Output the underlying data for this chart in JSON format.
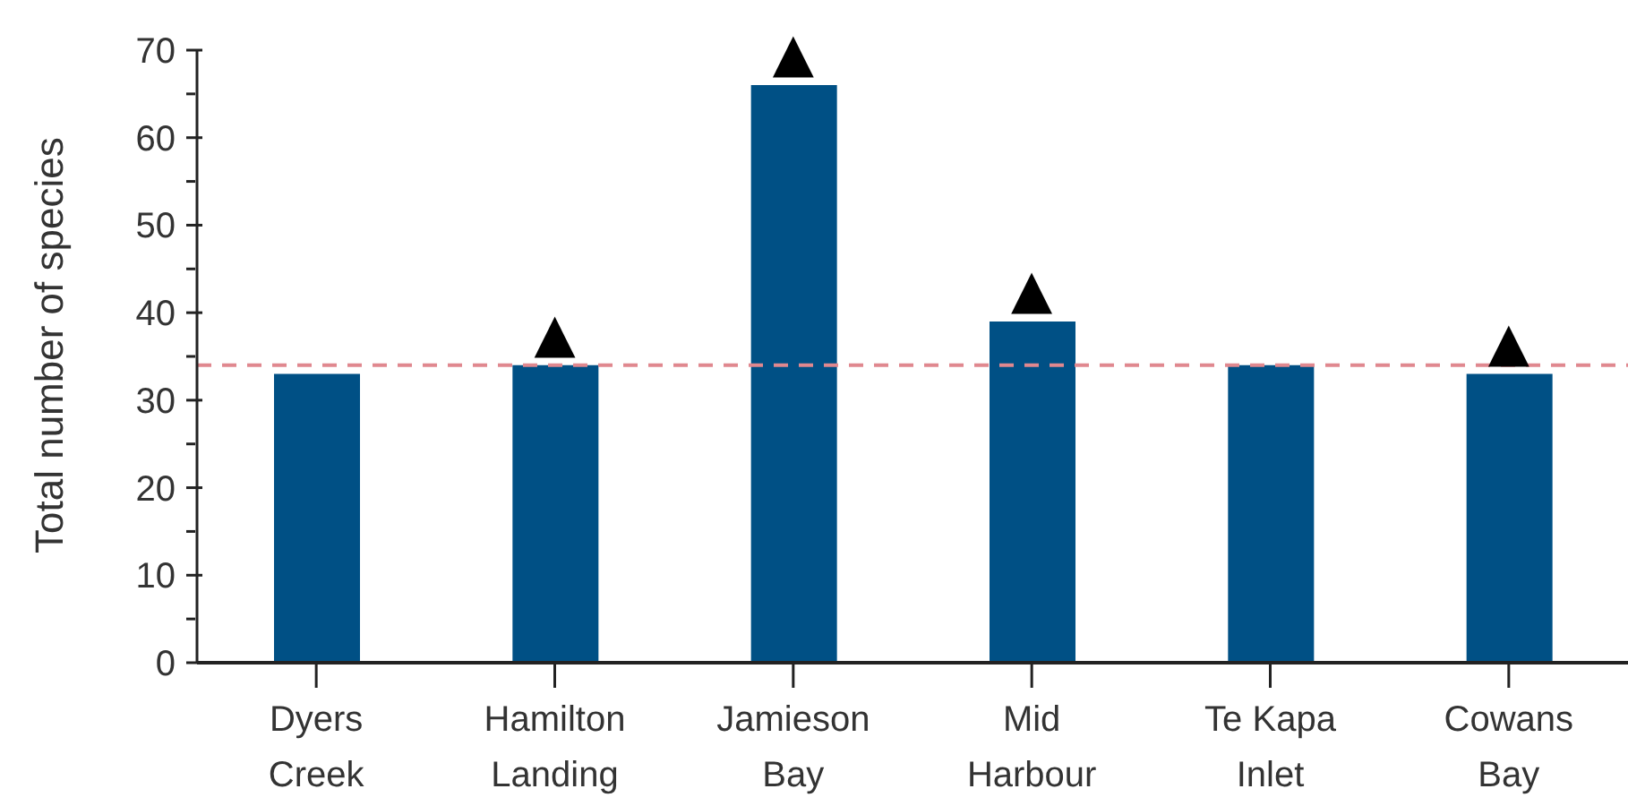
{
  "chart_data": {
    "type": "bar",
    "ylabel": "Total number of species",
    "categories": [
      "Dyers Creek",
      "Hamilton Landing",
      "Jamieson Bay",
      "Mid Harbour",
      "Te Kapa Inlet",
      "Cowans Bay"
    ],
    "values": [
      33,
      34,
      66,
      39,
      34,
      33
    ],
    "color": "#005085",
    "ylim": [
      0,
      70
    ],
    "yticks": [
      0,
      {
        "value": 5,
        "label": null
      },
      10,
      {
        "value": 15,
        "label": null
      },
      20,
      {
        "value": 25,
        "label": null
      },
      30,
      {
        "value": 35,
        "label": null
      },
      40,
      {
        "value": 45,
        "label": null
      },
      50,
      {
        "value": 55,
        "label": null
      },
      60,
      {
        "value": 65,
        "label": null
      },
      70
    ],
    "ref_lines": [
      {
        "axis": "y",
        "value": 34,
        "color": "#e0888f",
        "line_style": "dashed"
      }
    ],
    "annotations": [
      {
        "text": "▲",
        "x": "Hamilton Landing",
        "y": 34
      },
      {
        "text": "▲",
        "x": "Jamieson Bay",
        "y": 66
      },
      {
        "text": "▲",
        "x": "Mid Harbour",
        "y": 39
      },
      {
        "text": "▲",
        "x": "Cowans Bay",
        "y": 33
      }
    ],
    "grid": false,
    "legend": false
  }
}
